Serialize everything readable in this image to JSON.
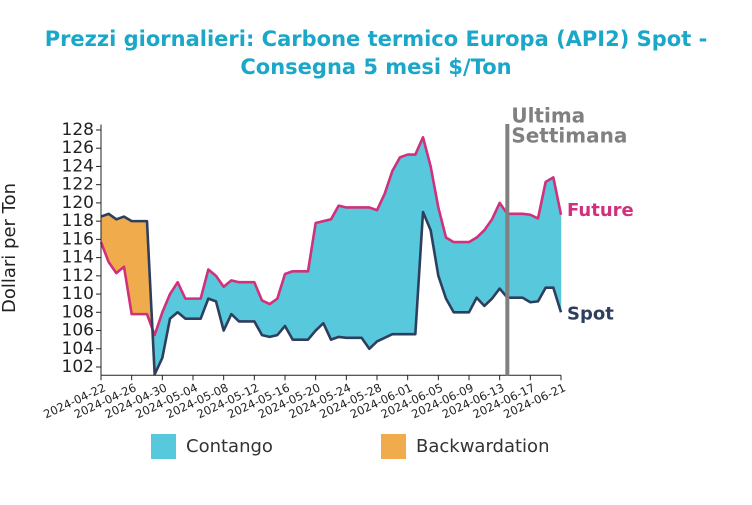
{
  "chart_data": {
    "type": "spread",
    "title_lines": [
      "Prezzi giornalieri: Carbone termico Europa (API2) Spot -",
      "Consegna 5 mesi $/Ton"
    ],
    "ylabel": "Dollari per Ton",
    "x": [
      "2024-04-22",
      "2024-04-23",
      "2024-04-24",
      "2024-04-25",
      "2024-04-26",
      "2024-04-27",
      "2024-04-28",
      "2024-04-29",
      "2024-04-30",
      "2024-05-01",
      "2024-05-02",
      "2024-05-03",
      "2024-05-04",
      "2024-05-05",
      "2024-05-06",
      "2024-05-07",
      "2024-05-08",
      "2024-05-09",
      "2024-05-10",
      "2024-05-11",
      "2024-05-12",
      "2024-05-13",
      "2024-05-14",
      "2024-05-15",
      "2024-05-16",
      "2024-05-17",
      "2024-05-18",
      "2024-05-19",
      "2024-05-20",
      "2024-05-21",
      "2024-05-22",
      "2024-05-23",
      "2024-05-24",
      "2024-05-25",
      "2024-05-26",
      "2024-05-27",
      "2024-05-28",
      "2024-05-29",
      "2024-05-30",
      "2024-05-31",
      "2024-06-01",
      "2024-06-02",
      "2024-06-03",
      "2024-06-04",
      "2024-06-05",
      "2024-06-06",
      "2024-06-07",
      "2024-06-08",
      "2024-06-09",
      "2024-06-10",
      "2024-06-11",
      "2024-06-12",
      "2024-06-13",
      "2024-06-14",
      "2024-06-15",
      "2024-06-16",
      "2024-06-17",
      "2024-06-18",
      "2024-06-19",
      "2024-06-20",
      "2024-06-21"
    ],
    "series": [
      {
        "name": "Future",
        "color": "#d0307c",
        "values": [
          115.7,
          113.5,
          112.3,
          113,
          107.8,
          107.8,
          107.8,
          105.5,
          108,
          110,
          111.3,
          109.5,
          109.5,
          109.5,
          112.7,
          112,
          110.8,
          111.5,
          111.3,
          111.3,
          111.3,
          109.3,
          108.9,
          109.5,
          112.2,
          112.5,
          112.5,
          112.5,
          117.8,
          118,
          118.2,
          119.7,
          119.5,
          119.5,
          119.5,
          119.5,
          119.2,
          121,
          123.5,
          125,
          125.3,
          125.3,
          127.2,
          124,
          119.5,
          116.2,
          115.7,
          115.7,
          115.7,
          116.2,
          117,
          118.2,
          120,
          118.8,
          118.8,
          118.8,
          118.7,
          118.3,
          122.3,
          122.8,
          118.7
        ]
      },
      {
        "name": "Spot",
        "color": "#2e3f5e",
        "values": [
          118.5,
          118.8,
          118.2,
          118.5,
          118,
          118,
          118,
          101.2,
          103,
          107.3,
          108,
          107.3,
          107.3,
          107.3,
          109.5,
          109.2,
          106,
          107.8,
          107,
          107,
          107,
          105.5,
          105.3,
          105.5,
          106.5,
          105,
          105,
          105,
          106,
          106.8,
          105,
          105.3,
          105.2,
          105.2,
          105.2,
          104,
          104.8,
          105.2,
          105.6,
          105.6,
          105.6,
          105.6,
          119,
          117,
          112,
          109.5,
          108,
          108,
          108,
          109.6,
          108.7,
          109.5,
          110.6,
          109.6,
          109.6,
          109.6,
          109.1,
          109.2,
          110.7,
          110.7,
          108
        ]
      }
    ],
    "legend": [
      {
        "name": "Contango",
        "color": "#58c8dc"
      },
      {
        "name": "Backwardation",
        "color": "#efab4c"
      }
    ],
    "marker": {
      "x": "2024-06-14",
      "label_lines": [
        "Ultima",
        "Settimana"
      ],
      "color": "#808080"
    },
    "xlim": [
      "2024-04-22",
      "2024-06-21"
    ],
    "xticks": [
      "2024-04-22",
      "2024-04-26",
      "2024-04-30",
      "2024-05-04",
      "2024-05-08",
      "2024-05-12",
      "2024-05-16",
      "2024-05-20",
      "2024-05-24",
      "2024-05-28",
      "2024-06-01",
      "2024-06-05",
      "2024-06-09",
      "2024-06-13",
      "2024-06-17",
      "2024-06-21"
    ],
    "ylim": [
      101.1,
      128.6
    ],
    "yticks": [
      102,
      104,
      106,
      108,
      110,
      112,
      114,
      116,
      118,
      120,
      122,
      124,
      126,
      128
    ]
  }
}
